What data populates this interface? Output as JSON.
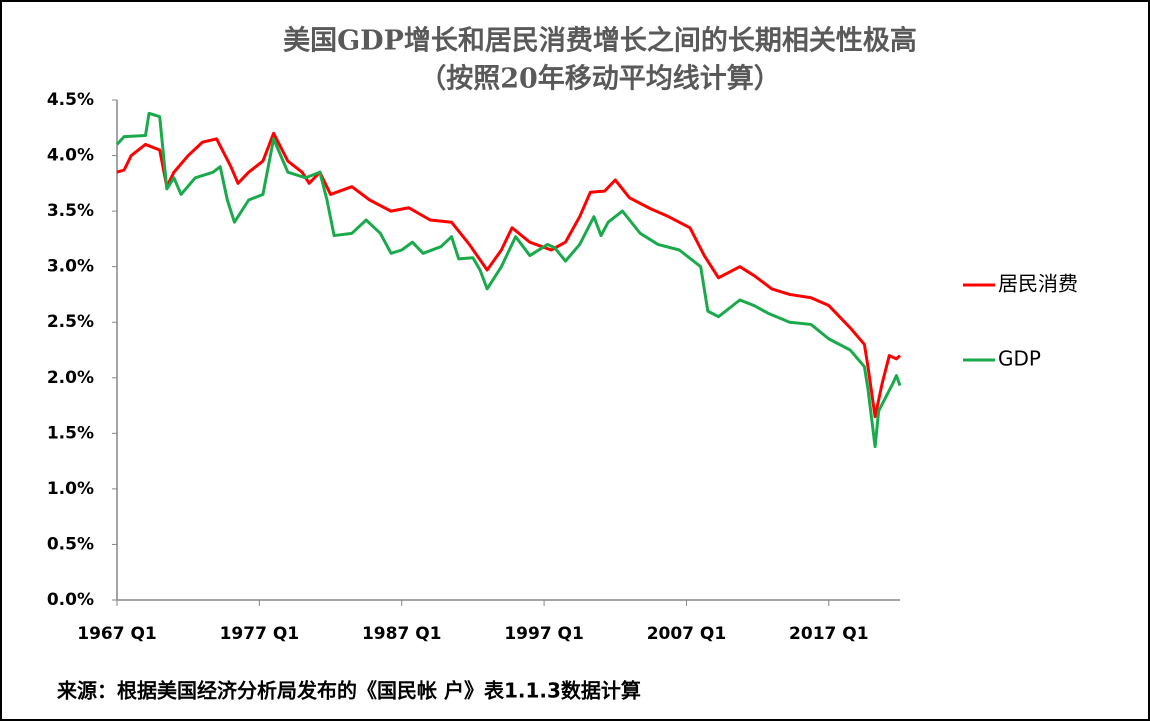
{
  "chart_data": {
    "type": "line",
    "title": "美国GDP增长和居民消费增长之间的长期相关性极高",
    "subtitle": "（按照20年移动平均线计算）",
    "source": "来源：根据美国经济分析局发布的《国民帐 户》表1.1.3数据计算",
    "xlim": [
      1967,
      2022
    ],
    "xticks": [
      {
        "value": 1967,
        "label": "1967 Q1"
      },
      {
        "value": 1977,
        "label": "1977 Q1"
      },
      {
        "value": 1987,
        "label": "1987 Q1"
      },
      {
        "value": 1997,
        "label": "1997 Q1"
      },
      {
        "value": 2007,
        "label": "2007 Q1"
      },
      {
        "value": 2017,
        "label": "2017 Q1"
      }
    ],
    "ylim": [
      0,
      4.5
    ],
    "yticks": [
      {
        "value": 0,
        "label": "0.0%"
      },
      {
        "value": 0.5,
        "label": "0.5%"
      },
      {
        "value": 1,
        "label": "1.0%"
      },
      {
        "value": 1.5,
        "label": "1.5%"
      },
      {
        "value": 2,
        "label": "2.0%"
      },
      {
        "value": 2.5,
        "label": "2.5%"
      },
      {
        "value": 3,
        "label": "3.0%"
      },
      {
        "value": 3.5,
        "label": "3.5%"
      },
      {
        "value": 4,
        "label": "4.0%"
      },
      {
        "value": 4.5,
        "label": "4.5%"
      }
    ],
    "grid": false,
    "legend": "right",
    "series": [
      {
        "name": "居民消费",
        "color": "#ff0000",
        "x": [
          1967.0,
          1967.5,
          1968.0,
          1969.0,
          1970.0,
          1970.5,
          1971.0,
          1972.0,
          1973.0,
          1974.0,
          1975.0,
          1975.5,
          1976.25,
          1977.25,
          1978.0,
          1979.0,
          1980.0,
          1980.5,
          1981.25,
          1982.0,
          1983.5,
          1984.75,
          1986.25,
          1987.5,
          1989.0,
          1990.5,
          1991.75,
          1993.0,
          1994.0,
          1994.75,
          1996.0,
          1997.5,
          1998.5,
          1999.5,
          2000.25,
          2001.25,
          2002.0,
          2003.0,
          2004.5,
          2005.75,
          2007.25,
          2008.25,
          2009.25,
          2010.75,
          2011.75,
          2013.0,
          2014.25,
          2015.75,
          2017.0,
          2018.5,
          2019.5,
          2019.75,
          2020.25,
          2020.75,
          2021.25,
          2021.75,
          2022.0
        ],
        "values": [
          3.85,
          3.87,
          4.0,
          4.1,
          4.05,
          3.72,
          3.85,
          4.0,
          4.12,
          4.15,
          3.9,
          3.75,
          3.85,
          3.95,
          4.2,
          3.95,
          3.85,
          3.75,
          3.85,
          3.65,
          3.72,
          3.6,
          3.5,
          3.53,
          3.42,
          3.4,
          3.2,
          2.97,
          3.15,
          3.35,
          3.22,
          3.15,
          3.22,
          3.45,
          3.67,
          3.68,
          3.78,
          3.62,
          3.52,
          3.45,
          3.35,
          3.1,
          2.9,
          3.0,
          2.92,
          2.8,
          2.75,
          2.72,
          2.65,
          2.45,
          2.3,
          2.1,
          1.65,
          1.95,
          2.2,
          2.17,
          2.2
        ]
      },
      {
        "name": "GDP",
        "color": "#1aaa4b",
        "x": [
          1967.0,
          1967.5,
          1969.0,
          1969.25,
          1970.0,
          1970.5,
          1971.0,
          1971.5,
          1972.5,
          1973.75,
          1974.25,
          1974.75,
          1975.25,
          1976.25,
          1977.25,
          1978.0,
          1979.0,
          1980.25,
          1981.25,
          1981.75,
          1982.25,
          1983.5,
          1984.5,
          1985.5,
          1986.25,
          1987.0,
          1987.75,
          1988.5,
          1989.75,
          1990.5,
          1991.0,
          1992.0,
          1992.5,
          1993.0,
          1994.0,
          1995.0,
          1996.0,
          1997.25,
          1997.75,
          1998.5,
          1999.5,
          2000.5,
          2001.0,
          2001.5,
          2002.5,
          2003.75,
          2005.0,
          2006.5,
          2008.0,
          2008.5,
          2009.25,
          2010.75,
          2011.75,
          2012.75,
          2014.25,
          2015.75,
          2017.0,
          2018.5,
          2019.5,
          2019.75,
          2020.25,
          2020.5,
          2021.5,
          2021.75,
          2022.0
        ],
        "values": [
          4.1,
          4.17,
          4.18,
          4.38,
          4.35,
          3.7,
          3.8,
          3.65,
          3.8,
          3.85,
          3.9,
          3.6,
          3.4,
          3.6,
          3.65,
          4.15,
          3.85,
          3.8,
          3.85,
          3.6,
          3.28,
          3.3,
          3.42,
          3.3,
          3.12,
          3.15,
          3.22,
          3.12,
          3.18,
          3.27,
          3.07,
          3.08,
          2.97,
          2.8,
          3.0,
          3.27,
          3.1,
          3.2,
          3.17,
          3.05,
          3.2,
          3.45,
          3.28,
          3.4,
          3.5,
          3.3,
          3.2,
          3.15,
          3.0,
          2.6,
          2.55,
          2.7,
          2.65,
          2.58,
          2.5,
          2.48,
          2.35,
          2.25,
          2.1,
          1.9,
          1.38,
          1.7,
          1.95,
          2.02,
          1.93
        ]
      }
    ]
  }
}
